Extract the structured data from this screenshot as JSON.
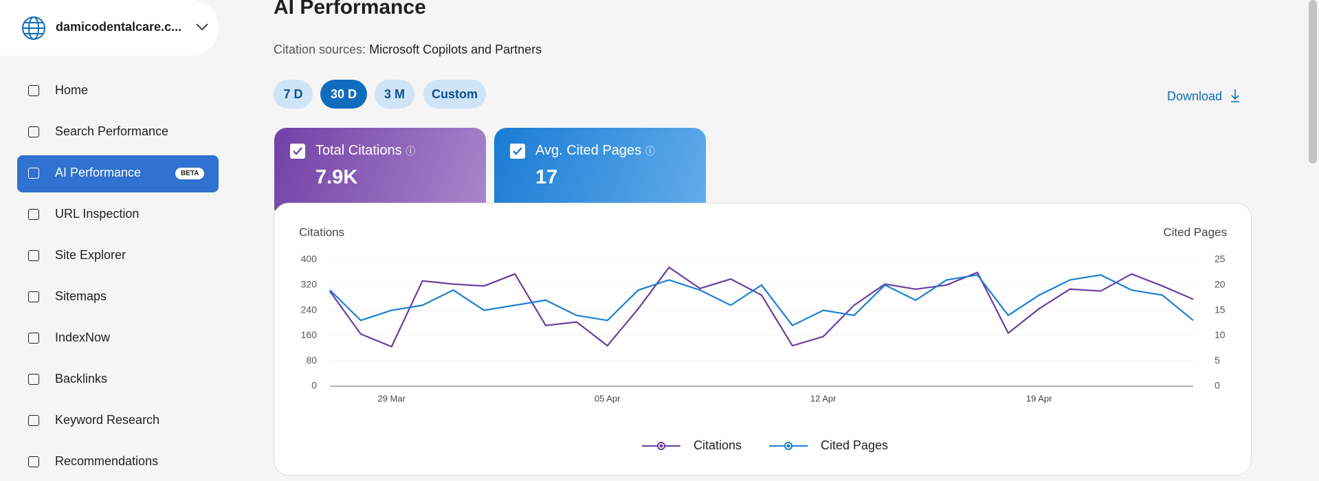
{
  "sidebar": {
    "site": "damicodentalcare.c...",
    "nav": [
      "Home",
      "Search Performance",
      "AI Performance",
      "URL Inspection",
      "Site Explorer",
      "Sitemaps",
      "IndexNow",
      "Backlinks",
      "Keyword Research",
      "Recommendations"
    ],
    "active": 2,
    "badge": "BETA"
  },
  "header": {
    "title": "AI Performance",
    "sources_label": "Citation sources:",
    "sources_value": "Microsoft Copilots and Partners",
    "ranges": [
      "7 D",
      "30 D",
      "3 M",
      "Custom"
    ],
    "active_range": 1,
    "download": "Download"
  },
  "cards": [
    {
      "label": "Total Citations",
      "value": "7.9K"
    },
    {
      "label": "Avg. Cited Pages",
      "value": "17"
    }
  ],
  "chart_data": {
    "type": "line",
    "y_label": "Citations",
    "y2_label": "Cited Pages",
    "categories": [
      null,
      null,
      "29 Mar",
      null,
      null,
      null,
      null,
      null,
      null,
      "05 Apr",
      null,
      null,
      null,
      null,
      null,
      null,
      "12 Apr",
      null,
      null,
      null,
      null,
      null,
      null,
      "19 Apr",
      null,
      null,
      null,
      null,
      null
    ],
    "series": [
      {
        "name": "Citations",
        "color": "#6b3c9e",
        "values": [
          300,
          165,
          125,
          333,
          323,
          317,
          355,
          192,
          203,
          128,
          245,
          376,
          309,
          339,
          288,
          128,
          157,
          256,
          323,
          307,
          320,
          360,
          168,
          245,
          307,
          301,
          355,
          317,
          275
        ]
      },
      {
        "name": "Cited Pages",
        "color": "#1a7fd4",
        "axis": "y2",
        "values": [
          19,
          13,
          15,
          16,
          19,
          15,
          16,
          17,
          14,
          13,
          19,
          21,
          19,
          16,
          20,
          12,
          15,
          14,
          20,
          17,
          21,
          22,
          14,
          18,
          21,
          22,
          19,
          18,
          13
        ]
      }
    ],
    "ylim": [
      0,
      400
    ],
    "yticks": [
      0,
      80,
      160,
      240,
      320,
      400
    ],
    "y2lim": [
      0,
      25
    ],
    "y2ticks": [
      0,
      5,
      10,
      15,
      20,
      25
    ],
    "grid": true
  }
}
